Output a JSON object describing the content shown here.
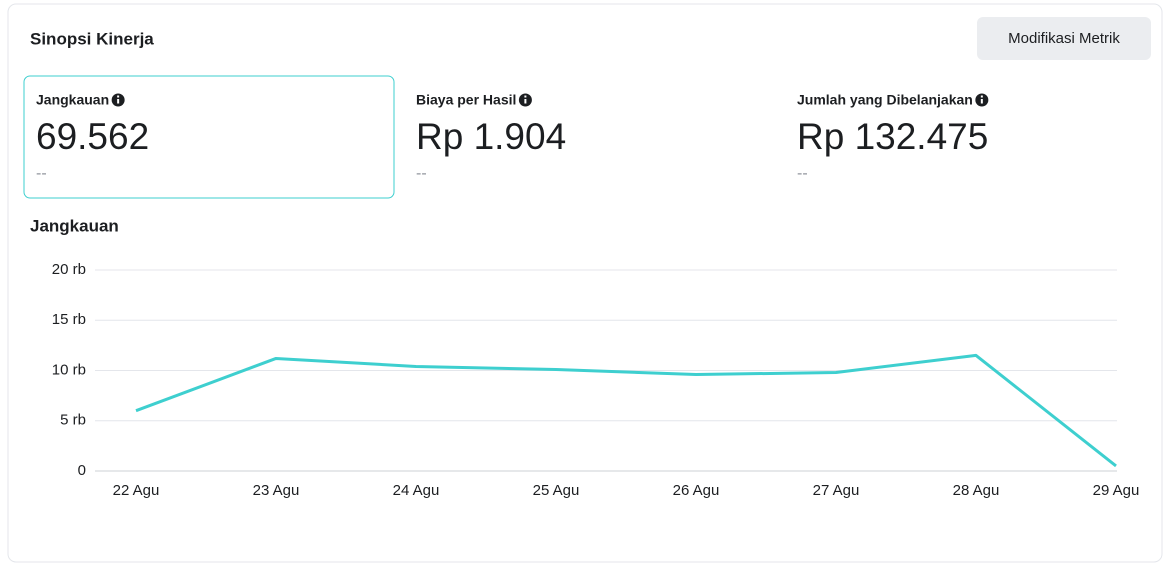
{
  "header": {
    "title": "Sinopsi Kinerja",
    "button": "Modifikasi Metrik"
  },
  "metrics": [
    {
      "label": "Jangkauan",
      "value": "69.562",
      "change": "--"
    },
    {
      "label": "Biaya per Hasil",
      "value": "Rp 1.904",
      "change": "--"
    },
    {
      "label": "Jumlah yang Dibelanjakan",
      "value": "Rp 132.475",
      "change": "--"
    }
  ],
  "chart_data": {
    "type": "line",
    "title": "Jangkauan",
    "categories": [
      "22 Agu",
      "23 Agu",
      "24 Agu",
      "25 Agu",
      "26 Agu",
      "27 Agu",
      "28 Agu",
      "29 Agu"
    ],
    "series": [
      {
        "name": "Jangkauan",
        "color": "#3ecfcf",
        "values": [
          6000,
          11200,
          10400,
          10100,
          9600,
          9800,
          11500,
          500
        ]
      }
    ],
    "ylim": [
      0,
      20000
    ],
    "yticks": [
      0,
      {
        "value": 5000,
        "label": "5 rb"
      },
      {
        "value": 10000,
        "label": "10 rb"
      },
      {
        "value": 15000,
        "label": "15 rb"
      },
      {
        "value": 20000,
        "label": "20 rb"
      }
    ],
    "grid": true
  }
}
